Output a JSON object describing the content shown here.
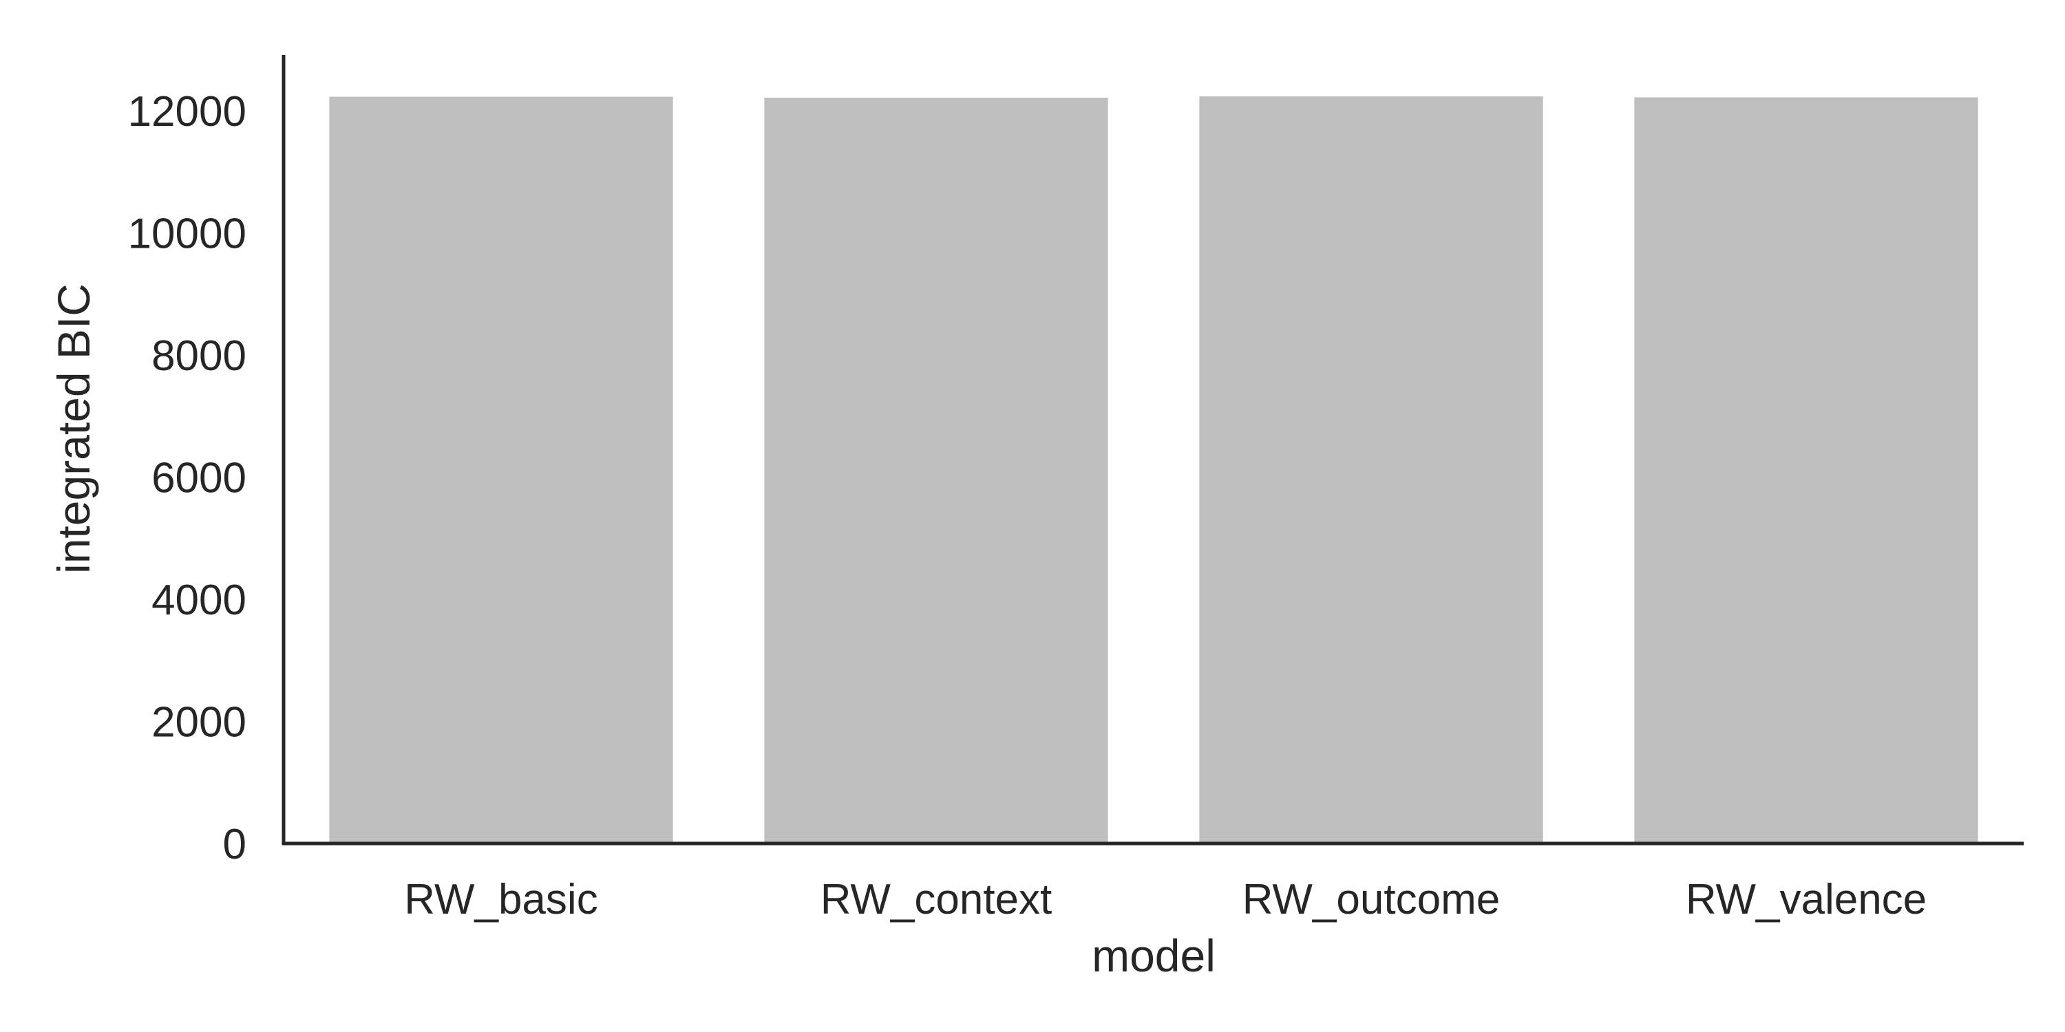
{
  "chart_data": {
    "type": "bar",
    "title": "",
    "xlabel": "model",
    "ylabel": "integrated BIC",
    "categories": [
      "RW_basic",
      "RW_context",
      "RW_outcome",
      "RW_valence"
    ],
    "values": [
      12230,
      12215,
      12235,
      12220
    ],
    "ylim": [
      0,
      12900
    ],
    "yticks": [
      0,
      2000,
      4000,
      6000,
      8000,
      10000,
      12000
    ],
    "bar_color": "#bfbfbf",
    "axis_color": "#262626",
    "grid": false,
    "legend": "none"
  }
}
